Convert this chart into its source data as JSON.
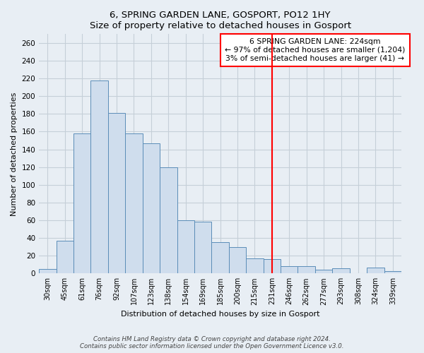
{
  "title": "6, SPRING GARDEN LANE, GOSPORT, PO12 1HY",
  "subtitle": "Size of property relative to detached houses in Gosport",
  "xlabel": "Distribution of detached houses by size in Gosport",
  "ylabel": "Number of detached properties",
  "bar_color": "#cfdded",
  "bar_edge_color": "#5b8db8",
  "categories": [
    "30sqm",
    "45sqm",
    "61sqm",
    "76sqm",
    "92sqm",
    "107sqm",
    "123sqm",
    "138sqm",
    "154sqm",
    "169sqm",
    "185sqm",
    "200sqm",
    "215sqm",
    "231sqm",
    "246sqm",
    "262sqm",
    "277sqm",
    "293sqm",
    "308sqm",
    "324sqm",
    "339sqm"
  ],
  "values": [
    5,
    37,
    158,
    218,
    181,
    158,
    147,
    120,
    60,
    58,
    35,
    30,
    17,
    16,
    8,
    8,
    4,
    6,
    0,
    7,
    3
  ],
  "property_line_label": "6 SPRING GARDEN LANE: 224sqm",
  "annotation_line1": "← 97% of detached houses are smaller (1,204)",
  "annotation_line2": "3% of semi-detached houses are larger (41) →",
  "ylim": [
    0,
    270
  ],
  "yticks": [
    0,
    20,
    40,
    60,
    80,
    100,
    120,
    140,
    160,
    180,
    200,
    220,
    240,
    260
  ],
  "footer1": "Contains HM Land Registry data © Crown copyright and database right 2024.",
  "footer2": "Contains public sector information licensed under the Open Government Licence v3.0.",
  "bg_color": "#e8eef4",
  "plot_bg_color": "#e8eef4",
  "grid_color": "#c5cfd8"
}
